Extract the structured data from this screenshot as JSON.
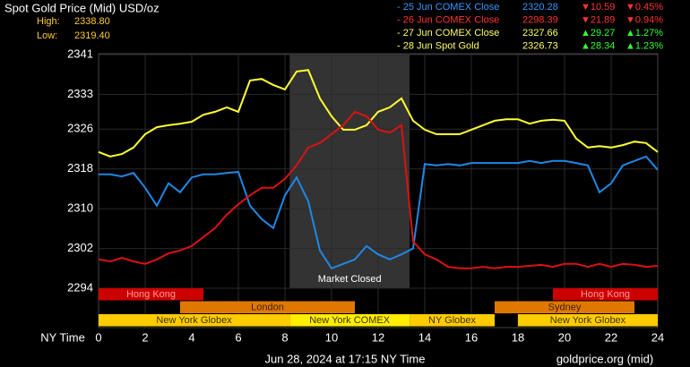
{
  "chart_data": {
    "type": "line",
    "title": "Spot Gold Price (Mid) USD/oz",
    "high_label": "High:",
    "high": "2338.80",
    "low_label": "Low:",
    "low": "2319.40",
    "legend": [
      {
        "name": "- 25 Jun COMEX Close",
        "color": "#3399ff",
        "close": "2320.28",
        "change": "▼10.59",
        "percent": "▼0.45%",
        "change_color": "#ff3333"
      },
      {
        "name": "- 26 Jun COMEX Close",
        "color": "#ff3333",
        "close": "2298.39",
        "change": "▼21.89",
        "percent": "▼0.94%",
        "change_color": "#ff3333"
      },
      {
        "name": "- 27 Jun COMEX Close",
        "color": "#ffff66",
        "close": "2327.66",
        "change": "▲29.27",
        "percent": "▲1.27%",
        "change_color": "#33ff33"
      },
      {
        "name": "- 28 Jun Spot Gold",
        "color": "#ffff66",
        "close": "2326.73",
        "change": "▲28.34",
        "percent": "▲1.23%",
        "change_color": "#33ff33"
      }
    ],
    "x_label": "NY Time",
    "footer": "Jun 28, 2024 at 17:15 NY Time",
    "source": "goldprice.org (mid)",
    "closed": {
      "label": "Market Closed",
      "start": 8.2,
      "end": 13.35
    },
    "x": [
      0,
      0.5,
      1,
      1.5,
      2,
      2.5,
      3,
      3.5,
      4,
      4.5,
      5,
      5.5,
      6,
      6.5,
      7,
      7.5,
      8,
      8.5,
      9,
      9.5,
      10,
      10.5,
      11,
      11.5,
      12,
      12.5,
      13,
      13.5,
      14,
      14.5,
      15,
      15.5,
      16,
      16.5,
      17,
      17.5,
      18,
      18.5,
      19,
      19.5,
      20,
      20.5,
      21,
      21.5,
      22,
      22.5,
      23,
      23.5,
      24
    ],
    "xlim": [
      0,
      24
    ],
    "xticks": [
      0,
      2,
      4,
      6,
      8,
      10,
      12,
      14,
      16,
      18,
      20,
      22,
      24
    ],
    "ylim": [
      2294,
      2341
    ],
    "yticks": [
      2341,
      2333,
      2326,
      2318,
      2310,
      2302,
      2294
    ],
    "grid": true,
    "series": [
      {
        "color": "#ffff33",
        "values": [
          2321.4,
          2320.5,
          2321,
          2322.3,
          2325,
          2326.4,
          2326.8,
          2327.1,
          2327.5,
          2328.9,
          2329.5,
          2330.4,
          2329.5,
          2335.8,
          2336.1,
          2334.9,
          2334,
          2337.6,
          2337.9,
          2332.2,
          2328.6,
          2325.9,
          2325.9,
          2326.8,
          2329.5,
          2330.4,
          2332.2,
          2327.7,
          2325.9,
          2325,
          2325,
          2325,
          2325.9,
          2326.8,
          2327.7,
          2328,
          2328,
          2327.1,
          2327.7,
          2327.9,
          2327.7,
          2324.1,
          2322.3,
          2322.6,
          2322.3,
          2322.8,
          2323.5,
          2323.2,
          2321.4
        ]
      },
      {
        "color": "#1e88e5",
        "values": [
          2316.9,
          2316.9,
          2316.5,
          2317.2,
          2314.2,
          2310.6,
          2315.1,
          2313.3,
          2316.3,
          2316.9,
          2316.9,
          2317.2,
          2317.4,
          2310.6,
          2307.9,
          2306.1,
          2312.7,
          2316.3,
          2311.5,
          2301.6,
          2298,
          2298.9,
          2299.8,
          2302.5,
          2300.8,
          2299.8,
          2300.8,
          2302,
          2319,
          2318.7,
          2319,
          2318.7,
          2319.2,
          2319.2,
          2319.2,
          2319.2,
          2319.2,
          2319.6,
          2319.2,
          2319.6,
          2319.6,
          2319.2,
          2318.7,
          2313.3,
          2315.1,
          2318.7,
          2319.6,
          2320.5,
          2317.8
        ]
      },
      {
        "color": "#dd1111",
        "values": [
          2299.8,
          2299.4,
          2300.1,
          2299.4,
          2298.9,
          2299.8,
          2301,
          2301.6,
          2302.5,
          2304.3,
          2306.1,
          2308.8,
          2310.9,
          2312.7,
          2314.2,
          2314.2,
          2316,
          2318.7,
          2322.3,
          2323.2,
          2325,
          2326.8,
          2329.5,
          2328.6,
          2325.9,
          2325.3,
          2326.8,
          2303.4,
          2300.8,
          2299.8,
          2298.3,
          2298,
          2298,
          2298.3,
          2298,
          2298.3,
          2298.3,
          2298.5,
          2298.7,
          2298.3,
          2298.9,
          2298.9,
          2298.3,
          2298.9,
          2298.3,
          2298.9,
          2298.7,
          2298.3,
          2298.5
        ]
      }
    ],
    "session_rows": [
      [
        {
          "label": "Hong Kong",
          "start": 0,
          "end": 4.5,
          "color": "#cc0000",
          "text_color": "#ff9999"
        },
        {
          "label": "Hong Kong",
          "start": 19.5,
          "end": 24,
          "color": "#cc0000",
          "text_color": "#ff9999"
        }
      ],
      [
        {
          "label": "London",
          "start": 3.5,
          "end": 11,
          "color": "#e07800",
          "text_color": "#402000"
        },
        {
          "label": "Sydney",
          "start": 17,
          "end": 23,
          "color": "#e07800",
          "text_color": "#402000"
        }
      ],
      [
        {
          "label": "New York Globex",
          "start": 0,
          "end": 8.2,
          "color": "#ffcc00",
          "text_color": "#403000"
        },
        {
          "label": "New York COMEX",
          "start": 8.2,
          "end": 13.35,
          "color": "#ffee00",
          "text_color": "#403000"
        },
        {
          "label": "NY Globex",
          "start": 13.35,
          "end": 17,
          "color": "#ffcc00",
          "text_color": "#403000"
        },
        {
          "label": "New York Globex",
          "start": 18,
          "end": 24,
          "color": "#ffcc00",
          "text_color": "#403000"
        }
      ]
    ]
  }
}
